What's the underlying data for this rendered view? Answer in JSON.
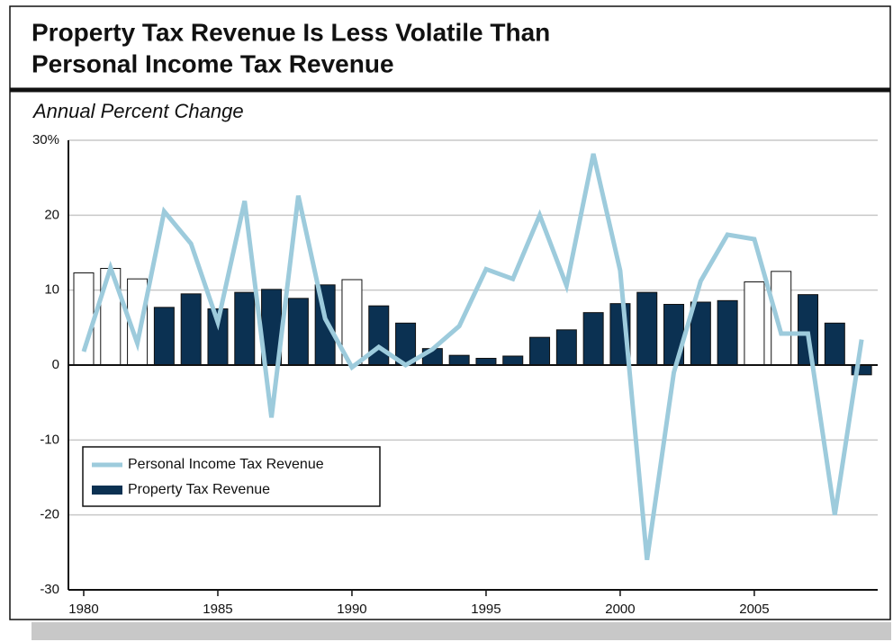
{
  "chart_data": {
    "type": "bar",
    "title": [
      "Property Tax Revenue Is Less Volatile Than",
      "Personal Income Tax Revenue"
    ],
    "subtitle": "Annual Percent Change",
    "x": [
      1980,
      1981,
      1982,
      1983,
      1984,
      1985,
      1986,
      1987,
      1988,
      1989,
      1990,
      1991,
      1992,
      1993,
      1994,
      1995,
      1996,
      1997,
      1998,
      1999,
      2000,
      2001,
      2002,
      2003,
      2004,
      2005,
      2006,
      2007,
      2008,
      2009
    ],
    "series": [
      {
        "name": "Personal Income Tax Revenue",
        "type": "line",
        "color": "#9dcbdc",
        "values": [
          1.8,
          13.0,
          2.9,
          20.5,
          16.2,
          5.7,
          21.9,
          -7.0,
          22.6,
          6.2,
          -0.3,
          2.4,
          0.0,
          2.1,
          5.2,
          12.8,
          11.5,
          20.0,
          10.6,
          28.2,
          12.6,
          -26.0,
          -1.0,
          11.2,
          17.4,
          16.8,
          4.2,
          4.2,
          -20.0,
          3.4
        ]
      },
      {
        "name": "Property Tax Revenue",
        "type": "bar",
        "color": "#0b3152",
        "values": [
          12.3,
          12.9,
          11.5,
          7.7,
          9.5,
          7.5,
          9.7,
          10.1,
          8.9,
          10.7,
          11.4,
          7.9,
          5.6,
          2.2,
          1.3,
          0.9,
          1.2,
          3.7,
          4.7,
          7.0,
          8.2,
          9.7,
          8.1,
          8.4,
          8.6,
          11.1,
          12.5,
          9.4,
          5.6,
          -1.3
        ],
        "colors": [
          "#ffffff",
          "#ffffff",
          "#ffffff",
          "#0b3152",
          "#0b3152",
          "#0b3152",
          "#0b3152",
          "#0b3152",
          "#0b3152",
          "#0b3152",
          "#ffffff",
          "#0b3152",
          "#0b3152",
          "#0b3152",
          "#0b3152",
          "#0b3152",
          "#0b3152",
          "#0b3152",
          "#0b3152",
          "#0b3152",
          "#0b3152",
          "#0b3152",
          "#0b3152",
          "#0b3152",
          "#0b3152",
          "#ffffff",
          "#ffffff",
          "#0b3152",
          "#0b3152",
          "#0b3152"
        ]
      }
    ],
    "xlim": [
      1979.43,
      2009.6
    ],
    "xticks": [
      1980,
      1985,
      1990,
      1995,
      2000,
      2005
    ],
    "ylim": [
      -30,
      30
    ],
    "yticks": [
      {
        "value": 30,
        "label": "30%"
      },
      20,
      10,
      0,
      -10,
      -20,
      -30
    ],
    "grid": true,
    "legend": "lower left"
  }
}
